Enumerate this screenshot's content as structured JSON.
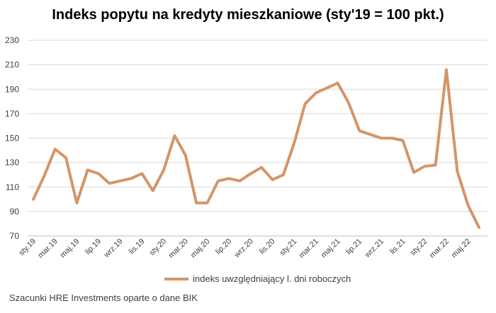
{
  "chart_data": {
    "type": "line",
    "title": "Indeks popytu na kredyty mieszkaniowe (sty'19 = 100 pkt.)",
    "ylim": [
      70,
      230
    ],
    "yticks": [
      70,
      90,
      110,
      130,
      150,
      170,
      190,
      210,
      230
    ],
    "x": [
      "sty.19",
      "lut.19",
      "mar.19",
      "kwi.19",
      "maj.19",
      "cze.19",
      "lip.19",
      "sie.19",
      "wrz.19",
      "paź.19",
      "lis.19",
      "gru.19",
      "sty.20",
      "lut.20",
      "mar.20",
      "kwi.20",
      "maj.20",
      "cze.20",
      "lip.20",
      "sie.20",
      "wrz.20",
      "paź.20",
      "lis.20",
      "gru.20",
      "sty.21",
      "lut.21",
      "mar.21",
      "kwi.21",
      "maj.21",
      "cze.21",
      "lip.21",
      "sie.21",
      "wrz.21",
      "paź.21",
      "lis.21",
      "gru.21",
      "sty.22",
      "lut.22",
      "mar.22",
      "kwi.22",
      "maj.22",
      "cze.22"
    ],
    "xtick_labels": [
      "sty.19",
      "mar.19",
      "maj.19",
      "lip.19",
      "wrz.19",
      "lis.19",
      "sty.20",
      "mar.20",
      "maj.20",
      "lip.20",
      "wrz.20",
      "lis.20",
      "sty.21",
      "mar.21",
      "maj.21",
      "lip.21",
      "wrz.21",
      "lis.21",
      "sty.22",
      "mar.22",
      "maj.22"
    ],
    "series": [
      {
        "name": "indeks uwzględniający l. dni roboczych",
        "color": "#D4956A",
        "values": [
          100,
          119,
          141,
          134,
          97,
          124,
          121,
          113,
          115,
          117,
          121,
          107,
          124,
          152,
          136,
          97,
          97,
          115,
          117,
          115,
          121,
          126,
          116,
          120,
          146,
          178,
          187,
          191,
          195,
          179,
          156,
          153,
          150,
          150,
          148,
          122,
          127,
          128,
          206,
          123,
          95,
          77
        ]
      }
    ]
  },
  "legend_label": "indeks uwzględniający l. dni roboczych",
  "source_note": "Szacunki HRE Investments oparte o dane BIK"
}
